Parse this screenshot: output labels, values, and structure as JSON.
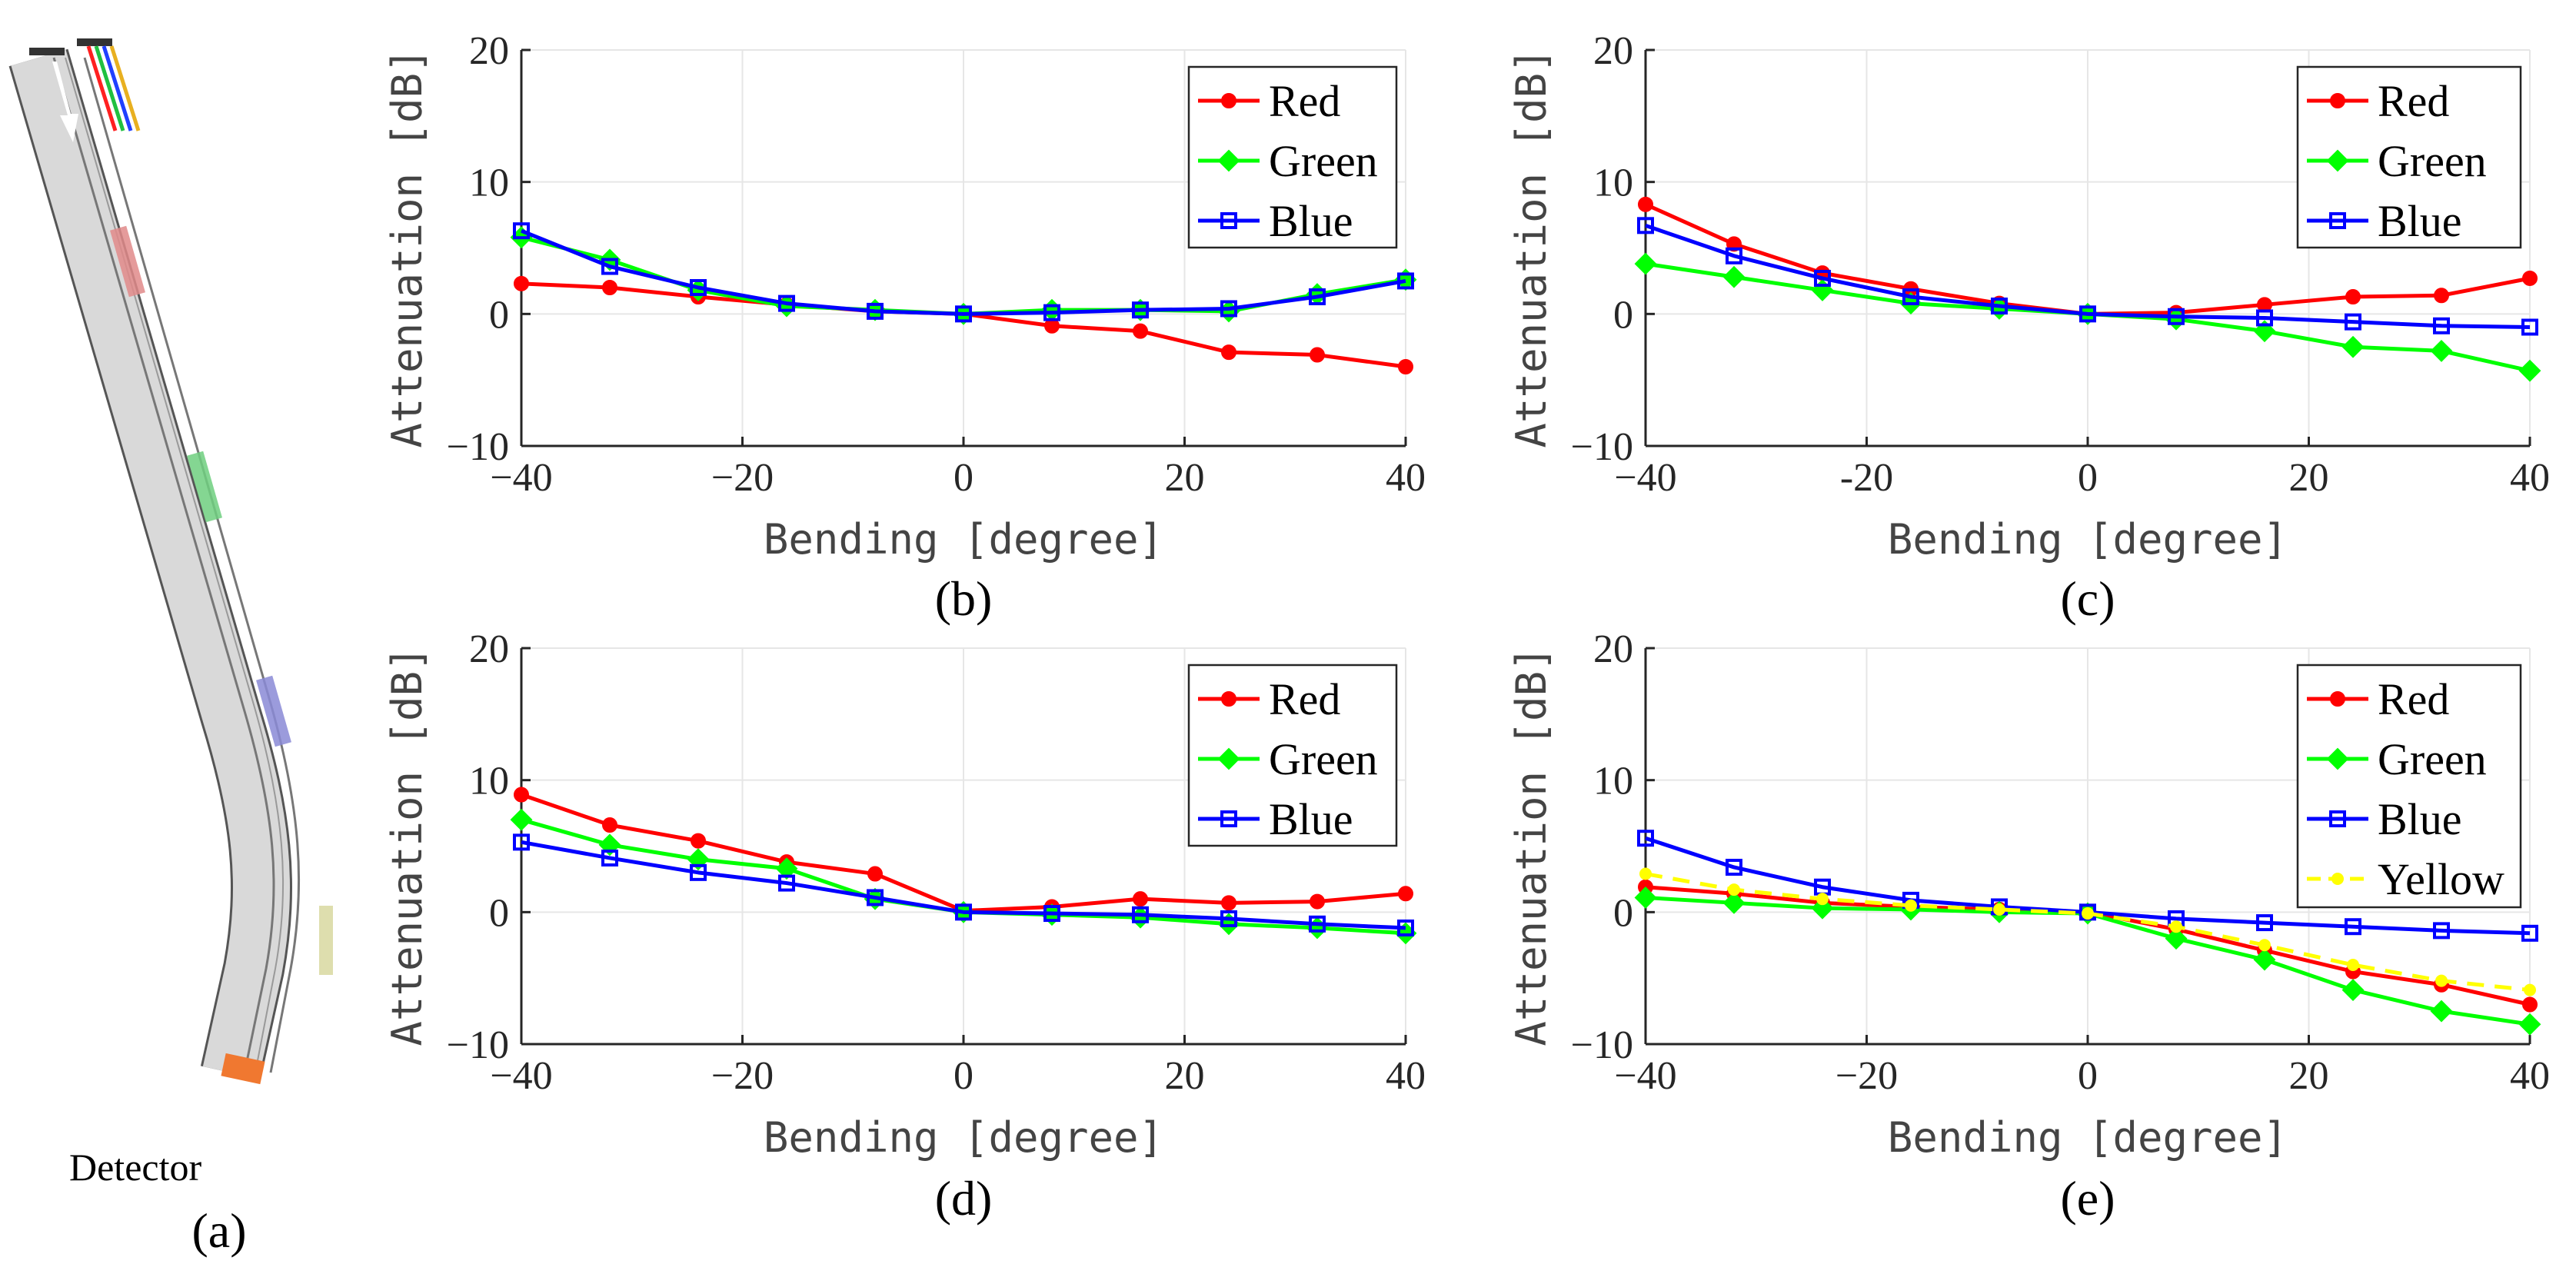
{
  "panel_a": {
    "label": "(a)",
    "detector_label": "Detector",
    "colors": {
      "detector": "#f07830",
      "segment_red": "#e08a8a",
      "segment_green": "#6fcf7f",
      "segment_blue": "#8a8ad6",
      "segment_yellow": "#d8d8a0"
    }
  },
  "chart_data": [
    {
      "type": "line",
      "panel": "(b)",
      "xlabel": "Bending [degree]",
      "ylabel": "Attenuation [dB]",
      "xlim": [
        -40,
        40
      ],
      "ylim": [
        -10,
        20
      ],
      "xticks": [
        "−40",
        "−20",
        "0",
        "20",
        "40"
      ],
      "yticks": [
        "−10",
        "0",
        "10",
        "20"
      ],
      "grid": true,
      "legend_position": "top-right",
      "x": [
        -40,
        -32,
        -24,
        -16,
        -8,
        0,
        8,
        16,
        24,
        32,
        40
      ],
      "series": [
        {
          "name": "Red",
          "color": "#ff0000",
          "marker": "circle",
          "dashed": false,
          "values": [
            2.3,
            2.0,
            1.3,
            0.7,
            0.2,
            0.0,
            -0.9,
            -1.3,
            -2.9,
            -3.1,
            -4.0
          ]
        },
        {
          "name": "Green",
          "color": "#00ff00",
          "marker": "diamond",
          "dashed": false,
          "values": [
            5.8,
            4.1,
            1.8,
            0.6,
            0.3,
            0.0,
            0.3,
            0.3,
            0.2,
            1.5,
            2.6
          ]
        },
        {
          "name": "Blue",
          "color": "#0000ff",
          "marker": "square",
          "dashed": false,
          "values": [
            6.3,
            3.6,
            2.0,
            0.8,
            0.2,
            0.0,
            0.1,
            0.3,
            0.4,
            1.3,
            2.5
          ]
        }
      ]
    },
    {
      "type": "line",
      "panel": "(c)",
      "xlabel": "Bending [degree]",
      "ylabel": "Attenuation [dB]",
      "xlim": [
        -40,
        40
      ],
      "ylim": [
        -10,
        20
      ],
      "xticks": [
        "−40",
        "-20",
        "0",
        "20",
        "40"
      ],
      "yticks": [
        "−10",
        "0",
        "10",
        "20"
      ],
      "grid": true,
      "legend_position": "top-right",
      "x": [
        -40,
        -32,
        -24,
        -16,
        -8,
        0,
        8,
        16,
        24,
        32,
        40
      ],
      "series": [
        {
          "name": "Red",
          "color": "#ff0000",
          "marker": "circle",
          "dashed": false,
          "values": [
            8.3,
            5.3,
            3.1,
            1.9,
            0.8,
            0.0,
            0.1,
            0.7,
            1.3,
            1.4,
            2.7
          ]
        },
        {
          "name": "Green",
          "color": "#00ff00",
          "marker": "diamond",
          "dashed": false,
          "values": [
            3.8,
            2.8,
            1.8,
            0.8,
            0.4,
            0.0,
            -0.4,
            -1.3,
            -2.5,
            -2.8,
            -4.3
          ]
        },
        {
          "name": "Blue",
          "color": "#0000ff",
          "marker": "square",
          "dashed": false,
          "values": [
            6.7,
            4.4,
            2.7,
            1.3,
            0.6,
            0.0,
            -0.2,
            -0.3,
            -0.6,
            -0.9,
            -1.0
          ]
        }
      ]
    },
    {
      "type": "line",
      "panel": "(d)",
      "xlabel": "Bending [degree]",
      "ylabel": "Attenuation [dB]",
      "xlim": [
        -40,
        40
      ],
      "ylim": [
        -10,
        20
      ],
      "xticks": [
        "−40",
        "−20",
        "0",
        "20",
        "40"
      ],
      "yticks": [
        "−10",
        "0",
        "10",
        "20"
      ],
      "grid": true,
      "legend_position": "top-right",
      "x": [
        -40,
        -32,
        -24,
        -16,
        -8,
        0,
        8,
        16,
        24,
        32,
        40
      ],
      "series": [
        {
          "name": "Red",
          "color": "#ff0000",
          "marker": "circle",
          "dashed": false,
          "values": [
            8.9,
            6.6,
            5.4,
            3.8,
            2.9,
            0.1,
            0.4,
            1.0,
            0.7,
            0.8,
            1.4
          ]
        },
        {
          "name": "Green",
          "color": "#00ff00",
          "marker": "diamond",
          "dashed": false,
          "values": [
            7.0,
            5.1,
            4.0,
            3.3,
            1.0,
            0.0,
            -0.2,
            -0.4,
            -0.9,
            -1.2,
            -1.6
          ]
        },
        {
          "name": "Blue",
          "color": "#0000ff",
          "marker": "square",
          "dashed": false,
          "values": [
            5.3,
            4.1,
            3.0,
            2.2,
            1.1,
            0.0,
            -0.1,
            -0.2,
            -0.5,
            -0.9,
            -1.2
          ]
        }
      ]
    },
    {
      "type": "line",
      "panel": "(e)",
      "xlabel": "Bending [degree]",
      "ylabel": "Attenuation [dB]",
      "xlim": [
        -40,
        40
      ],
      "ylim": [
        -10,
        20
      ],
      "xticks": [
        "−40",
        "−20",
        "0",
        "20",
        "40"
      ],
      "yticks": [
        "−10",
        "0",
        "10",
        "20"
      ],
      "grid": true,
      "legend_position": "top-right",
      "x": [
        -40,
        -32,
        -24,
        -16,
        -8,
        0,
        8,
        16,
        24,
        32,
        40
      ],
      "series": [
        {
          "name": "Red",
          "color": "#ff0000",
          "marker": "circle",
          "dashed": false,
          "values": [
            1.9,
            1.4,
            0.7,
            0.4,
            0.2,
            0.0,
            -1.3,
            -2.9,
            -4.5,
            -5.5,
            -7.0
          ]
        },
        {
          "name": "Green",
          "color": "#00ff00",
          "marker": "diamond",
          "dashed": false,
          "values": [
            1.1,
            0.7,
            0.3,
            0.2,
            0.0,
            -0.1,
            -2.0,
            -3.6,
            -5.9,
            -7.5,
            -8.5
          ]
        },
        {
          "name": "Blue",
          "color": "#0000ff",
          "marker": "square",
          "dashed": false,
          "values": [
            5.6,
            3.4,
            1.9,
            0.9,
            0.4,
            0.0,
            -0.5,
            -0.8,
            -1.1,
            -1.4,
            -1.6
          ]
        },
        {
          "name": "Yellow",
          "color": "#ffff00",
          "marker": "circle",
          "dashed": true,
          "values": [
            2.9,
            1.7,
            1.0,
            0.5,
            0.2,
            -0.1,
            -1.1,
            -2.5,
            -4.0,
            -5.2,
            -5.9
          ]
        }
      ]
    }
  ]
}
